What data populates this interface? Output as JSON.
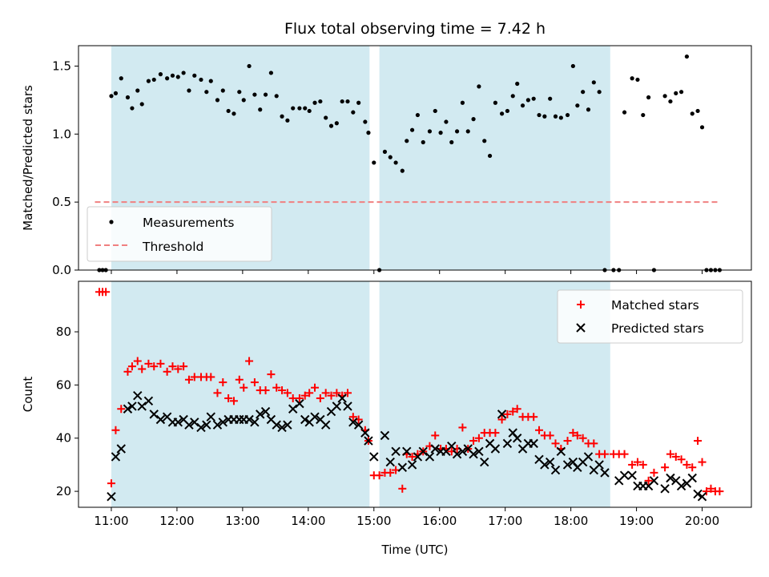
{
  "chart_data": [
    {
      "type": "scatter",
      "title": "Flux total observing time = 7.42 h",
      "xlabel": "",
      "ylabel": "Matched/Predicted stars",
      "xlim": [
        "10:30",
        "20:45"
      ],
      "ylim": [
        0,
        1.65
      ],
      "y_ticks": [
        0.0,
        0.5,
        1.0,
        1.5
      ],
      "y_tick_labels": [
        "0.0",
        "0.5",
        "1.0",
        "1.5"
      ],
      "x_ticks": [
        "11:00",
        "12:00",
        "13:00",
        "14:00",
        "15:00",
        "16:00",
        "17:00",
        "18:00",
        "19:00",
        "20:00"
      ],
      "shaded_intervals": [
        [
          "11:00",
          "14:56"
        ],
        [
          "15:05",
          "18:36"
        ]
      ],
      "shade_color": "#add8e6",
      "legend_position": "lower-left",
      "series": [
        {
          "name": "Measurements",
          "marker": "dot",
          "color": "#000000",
          "x": [
            "10:49",
            "10:52",
            "10:55",
            "11:00",
            "11:04",
            "11:09",
            "11:15",
            "11:19",
            "11:24",
            "11:28",
            "11:34",
            "11:39",
            "11:45",
            "11:51",
            "11:56",
            "12:01",
            "12:06",
            "12:11",
            "12:16",
            "12:22",
            "12:27",
            "12:31",
            "12:37",
            "12:42",
            "12:47",
            "12:52",
            "12:57",
            "13:01",
            "13:06",
            "13:11",
            "13:16",
            "13:21",
            "13:26",
            "13:31",
            "13:36",
            "13:41",
            "13:46",
            "13:52",
            "13:57",
            "14:01",
            "14:06",
            "14:11",
            "14:16",
            "14:21",
            "14:26",
            "14:31",
            "14:36",
            "14:41",
            "14:46",
            "14:52",
            "14:55",
            "15:00",
            "15:05",
            "15:10",
            "15:15",
            "15:20",
            "15:26",
            "15:30",
            "15:35",
            "15:40",
            "15:45",
            "15:51",
            "15:56",
            "16:01",
            "16:06",
            "16:11",
            "16:16",
            "16:21",
            "16:26",
            "16:31",
            "16:36",
            "16:41",
            "16:46",
            "16:51",
            "16:57",
            "17:02",
            "17:07",
            "17:11",
            "17:16",
            "17:21",
            "17:26",
            "17:31",
            "17:36",
            "17:41",
            "17:46",
            "17:51",
            "17:57",
            "18:02",
            "18:06",
            "18:11",
            "18:16",
            "18:21",
            "18:26",
            "18:31",
            "18:39",
            "18:44",
            "18:49",
            "18:56",
            "19:01",
            "19:06",
            "19:11",
            "19:16",
            "19:26",
            "19:31",
            "19:36",
            "19:41",
            "19:46",
            "19:51",
            "19:56",
            "20:00",
            "20:04",
            "20:08",
            "20:12",
            "20:16"
          ],
          "y": [
            0.0,
            0.0,
            0.0,
            1.28,
            1.3,
            1.41,
            1.27,
            1.19,
            1.32,
            1.22,
            1.39,
            1.4,
            1.44,
            1.41,
            1.43,
            1.42,
            1.45,
            1.32,
            1.43,
            1.4,
            1.31,
            1.39,
            1.25,
            1.32,
            1.17,
            1.15,
            1.31,
            1.25,
            1.5,
            1.29,
            1.18,
            1.29,
            1.45,
            1.28,
            1.13,
            1.1,
            1.19,
            1.19,
            1.19,
            1.17,
            1.23,
            1.24,
            1.12,
            1.06,
            1.08,
            1.24,
            1.24,
            1.16,
            1.23,
            1.09,
            1.01,
            0.79,
            0.0,
            0.87,
            0.83,
            0.79,
            0.73,
            0.95,
            1.03,
            1.14,
            0.94,
            1.02,
            1.17,
            1.01,
            1.09,
            0.94,
            1.02,
            1.23,
            1.02,
            1.11,
            1.35,
            0.95,
            0.84,
            1.23,
            1.15,
            1.17,
            1.28,
            1.37,
            1.21,
            1.25,
            1.26,
            1.14,
            1.13,
            1.26,
            1.13,
            1.12,
            1.14,
            1.5,
            1.21,
            1.31,
            1.18,
            1.38,
            1.31,
            0.0,
            0.0,
            0.0,
            1.16,
            1.41,
            1.4,
            1.14,
            1.27,
            0.0,
            1.28,
            1.24,
            1.3,
            1.31,
            1.57,
            1.15,
            1.17,
            1.05,
            0.0,
            0.0,
            0.0,
            0.0
          ]
        },
        {
          "name": "Threshold",
          "marker": "dashed-line",
          "color": "#f08080",
          "x": [
            "10:45",
            "20:15"
          ],
          "y": [
            0.5,
            0.5
          ]
        }
      ]
    },
    {
      "type": "scatter",
      "title": "",
      "xlabel": "Time (UTC)",
      "ylabel": "Count",
      "xlim": [
        "10:30",
        "20:45"
      ],
      "ylim": [
        14,
        99
      ],
      "y_ticks": [
        20,
        40,
        60,
        80
      ],
      "y_tick_labels": [
        "20",
        "40",
        "60",
        "80"
      ],
      "x_ticks": [
        "11:00",
        "12:00",
        "13:00",
        "14:00",
        "15:00",
        "16:00",
        "17:00",
        "18:00",
        "19:00",
        "20:00"
      ],
      "x_tick_labels": [
        "11:00",
        "12:00",
        "13:00",
        "14:00",
        "15:00",
        "16:00",
        "17:00",
        "18:00",
        "19:00",
        "20:00"
      ],
      "shaded_intervals": [
        [
          "11:00",
          "14:56"
        ],
        [
          "15:05",
          "18:36"
        ]
      ],
      "shade_color": "#add8e6",
      "legend_position": "upper-right",
      "series": [
        {
          "name": "Matched stars",
          "marker": "plus",
          "color": "#ff0000",
          "x": [
            "10:49",
            "10:52",
            "10:55",
            "11:00",
            "11:04",
            "11:09",
            "11:15",
            "11:19",
            "11:24",
            "11:28",
            "11:34",
            "11:39",
            "11:45",
            "11:51",
            "11:56",
            "12:01",
            "12:06",
            "12:11",
            "12:16",
            "12:22",
            "12:27",
            "12:31",
            "12:37",
            "12:42",
            "12:47",
            "12:52",
            "12:57",
            "13:01",
            "13:06",
            "13:11",
            "13:16",
            "13:21",
            "13:26",
            "13:31",
            "13:36",
            "13:41",
            "13:46",
            "13:52",
            "13:57",
            "14:01",
            "14:06",
            "14:11",
            "14:16",
            "14:21",
            "14:26",
            "14:31",
            "14:36",
            "14:41",
            "14:46",
            "14:52",
            "14:55",
            "15:00",
            "15:05",
            "15:10",
            "15:15",
            "15:20",
            "15:26",
            "15:30",
            "15:35",
            "15:40",
            "15:45",
            "15:51",
            "15:56",
            "16:01",
            "16:06",
            "16:11",
            "16:16",
            "16:21",
            "16:26",
            "16:31",
            "16:36",
            "16:41",
            "16:46",
            "16:51",
            "16:57",
            "17:02",
            "17:07",
            "17:11",
            "17:16",
            "17:21",
            "17:26",
            "17:31",
            "17:36",
            "17:41",
            "17:46",
            "17:51",
            "17:57",
            "18:02",
            "18:06",
            "18:11",
            "18:16",
            "18:21",
            "18:26",
            "18:31",
            "18:39",
            "18:44",
            "18:49",
            "18:56",
            "19:01",
            "19:06",
            "19:11",
            "19:16",
            "19:26",
            "19:31",
            "19:36",
            "19:41",
            "19:46",
            "19:51",
            "19:56",
            "20:00",
            "20:04",
            "20:08",
            "20:12",
            "20:16"
          ],
          "y": [
            95,
            95,
            95,
            23,
            43,
            51,
            65,
            67,
            69,
            66,
            68,
            67,
            68,
            65,
            67,
            66,
            67,
            62,
            63,
            63,
            63,
            63,
            57,
            61,
            55,
            54,
            62,
            59,
            69,
            61,
            58,
            58,
            64,
            59,
            58,
            57,
            55,
            55,
            56,
            57,
            59,
            55,
            57,
            56,
            57,
            56,
            57,
            48,
            47,
            43,
            39,
            26,
            26,
            27,
            27,
            28,
            21,
            34,
            33,
            34,
            35,
            37,
            41,
            36,
            36,
            35,
            36,
            44,
            36,
            39,
            40,
            42,
            42,
            42,
            47,
            49,
            50,
            51,
            48,
            48,
            48,
            43,
            41,
            41,
            38,
            36,
            39,
            42,
            41,
            40,
            38,
            38,
            34,
            34,
            34,
            34,
            34,
            30,
            31,
            30,
            24,
            27,
            29,
            34,
            33,
            32,
            30,
            29,
            39,
            31,
            20,
            21,
            20,
            20
          ]
        },
        {
          "name": "Predicted stars",
          "marker": "x",
          "color": "#000000",
          "x": [
            "11:00",
            "11:04",
            "11:09",
            "11:15",
            "11:19",
            "11:24",
            "11:28",
            "11:34",
            "11:39",
            "11:45",
            "11:51",
            "11:56",
            "12:01",
            "12:06",
            "12:11",
            "12:16",
            "12:22",
            "12:27",
            "12:31",
            "12:37",
            "12:42",
            "12:47",
            "12:52",
            "12:57",
            "13:01",
            "13:06",
            "13:11",
            "13:16",
            "13:21",
            "13:26",
            "13:31",
            "13:36",
            "13:41",
            "13:46",
            "13:52",
            "13:57",
            "14:01",
            "14:06",
            "14:11",
            "14:16",
            "14:21",
            "14:26",
            "14:31",
            "14:36",
            "14:41",
            "14:46",
            "14:52",
            "14:55",
            "15:00",
            "15:10",
            "15:15",
            "15:20",
            "15:26",
            "15:30",
            "15:35",
            "15:40",
            "15:45",
            "15:51",
            "15:56",
            "16:01",
            "16:06",
            "16:11",
            "16:16",
            "16:21",
            "16:26",
            "16:31",
            "16:36",
            "16:41",
            "16:46",
            "16:51",
            "16:57",
            "17:02",
            "17:07",
            "17:11",
            "17:16",
            "17:21",
            "17:26",
            "17:31",
            "17:36",
            "17:41",
            "17:46",
            "17:51",
            "17:57",
            "18:02",
            "18:06",
            "18:11",
            "18:16",
            "18:21",
            "18:26",
            "18:31",
            "18:44",
            "18:49",
            "18:56",
            "19:01",
            "19:06",
            "19:11",
            "19:16",
            "19:26",
            "19:31",
            "19:36",
            "19:41",
            "19:46",
            "19:51",
            "19:56",
            "20:00"
          ],
          "y": [
            18,
            33,
            36,
            51,
            52,
            56,
            52,
            54,
            49,
            47,
            48,
            46,
            46,
            47,
            45,
            46,
            44,
            45,
            48,
            45,
            46,
            47,
            47,
            47,
            47,
            47,
            46,
            49,
            50,
            47,
            45,
            44,
            45,
            51,
            53,
            47,
            46,
            48,
            47,
            45,
            50,
            52,
            55,
            52,
            46,
            45,
            42,
            39,
            33,
            41,
            31,
            35,
            29,
            35,
            30,
            33,
            35,
            33,
            36,
            35,
            35,
            37,
            34,
            35,
            36,
            34,
            35,
            31,
            38,
            36,
            49,
            38,
            42,
            40,
            36,
            38,
            38,
            32,
            30,
            31,
            28,
            35,
            30,
            31,
            29,
            31,
            33,
            28,
            30,
            27,
            24,
            26,
            26,
            22,
            22,
            22,
            24,
            21,
            25,
            24,
            22,
            23,
            25,
            19,
            18
          ]
        }
      ]
    }
  ],
  "legend_top": {
    "items": [
      "Measurements",
      "Threshold"
    ]
  },
  "legend_bottom": {
    "items": [
      "Matched stars",
      "Predicted stars"
    ]
  }
}
